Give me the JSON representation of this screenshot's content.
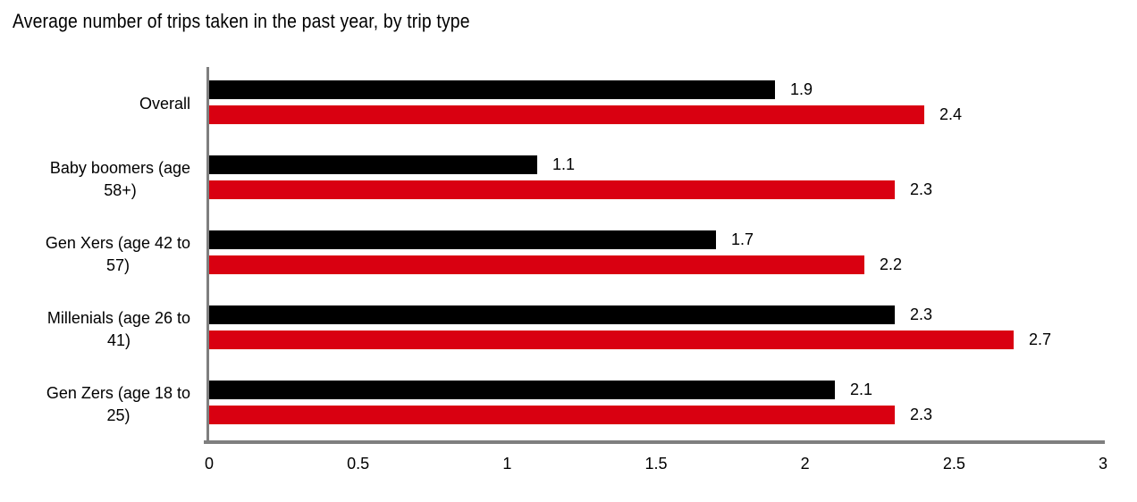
{
  "title": "Average number of trips taken in the past year, by trip type",
  "colors": {
    "background": "#ffffff",
    "axis": "#7f7f7f",
    "text": "#000000",
    "series_black": "#000000",
    "series_red": "#d90011"
  },
  "chart_data": {
    "type": "bar",
    "orientation": "horizontal",
    "title": "Average number of trips taken in the past year, by trip type",
    "categories": [
      "Overall",
      "Baby boomers (age\n58+)",
      "Gen Xers (age 42 to\n57)",
      "Millenials (age 26 to\n41)",
      "Gen Zers (age 18 to\n25)"
    ],
    "series": [
      {
        "name": "black-series",
        "color": "#000000",
        "values": [
          1.9,
          1.1,
          1.7,
          2.3,
          2.1
        ]
      },
      {
        "name": "red-series",
        "color": "#d90011",
        "values": [
          2.4,
          2.3,
          2.2,
          2.7,
          2.3
        ]
      }
    ],
    "value_labels": [
      "1.9",
      "1.1",
      "1.7",
      "2.3",
      "2.1",
      "2.4",
      "2.3",
      "2.2",
      "2.7",
      "2.3"
    ],
    "xlabel": "",
    "ylabel": "",
    "xlim": [
      0,
      3
    ],
    "x_ticks": [
      "0",
      "0.5",
      "1",
      "1.5",
      "2",
      "2.5",
      "3"
    ],
    "grid": false,
    "legend": "none"
  }
}
